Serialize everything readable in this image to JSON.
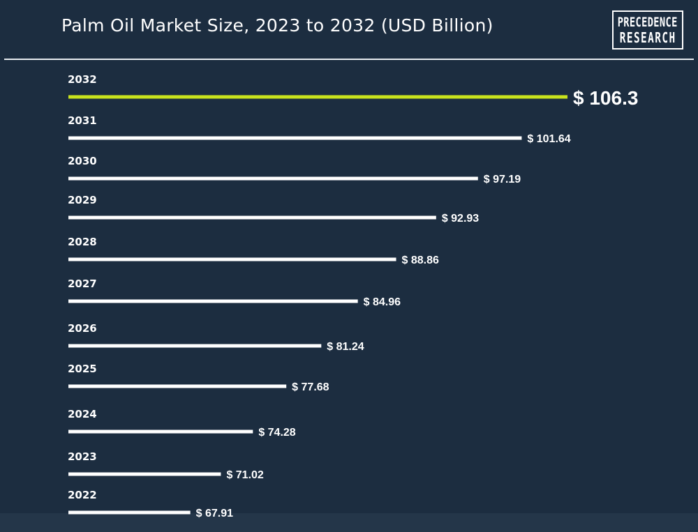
{
  "chart_data": {
    "type": "bar",
    "orientation": "horizontal",
    "title": "Palm Oil Market Size, 2023 to 2032 (USD Billion)",
    "categories": [
      "2032",
      "2031",
      "2030",
      "2029",
      "2028",
      "2027",
      "2026",
      "2025",
      "2024",
      "2023",
      "2022"
    ],
    "values": [
      106.3,
      101.64,
      97.19,
      92.93,
      88.86,
      84.96,
      81.24,
      77.68,
      74.28,
      71.02,
      67.91
    ],
    "value_labels": [
      "$ 106.3",
      "$ 101.64",
      "$ 97.19",
      "$ 92.93",
      "$ 88.86",
      "$ 84.96",
      "$ 81.24",
      "$ 77.68",
      "$ 74.28",
      "$ 71.02",
      "$ 67.91"
    ],
    "highlight_index": 0,
    "xlim": [
      55.5,
      106.3
    ],
    "grid": false,
    "legend": "none",
    "colors": {
      "background": "#1c2d40",
      "bar": "#ffffff",
      "highlight_bar": "#c9e31d",
      "text": "#ffffff"
    }
  },
  "brand": {
    "line1": "PRECEDENCE",
    "line2": "RESEARCH"
  }
}
